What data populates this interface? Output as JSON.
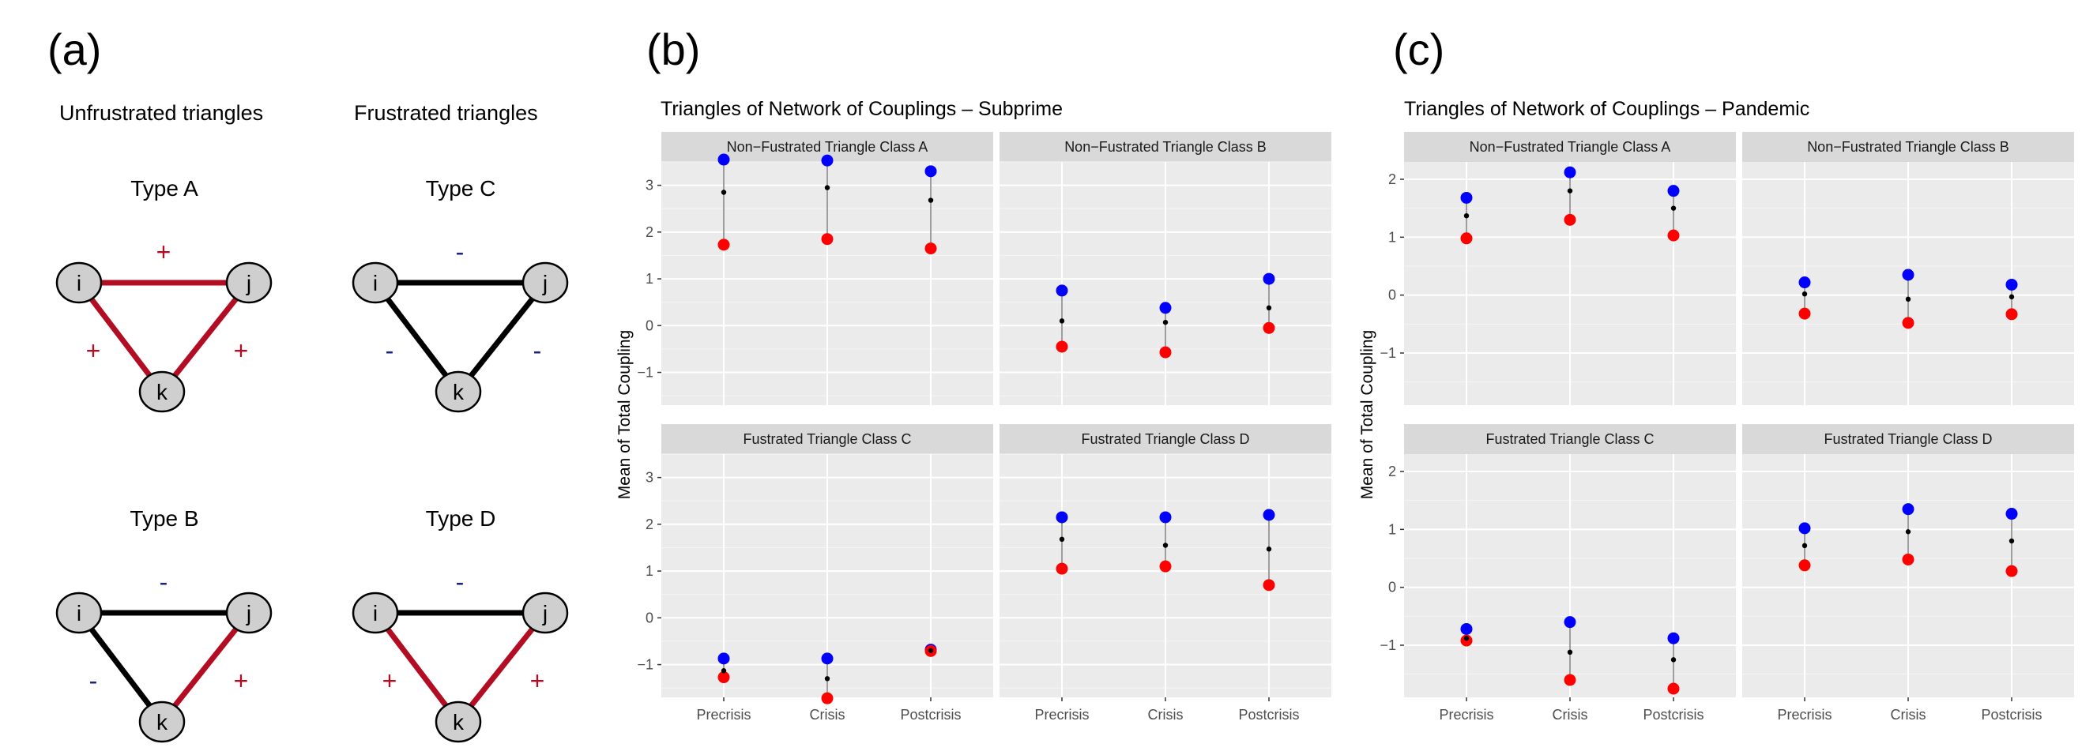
{
  "colors": {
    "positive_edge": "#b30d24",
    "negative_edge": "#000000",
    "positive_sign": "#b30d24",
    "negative_sign": "#1a237e",
    "node_fill": "#cfcfcf",
    "upper_point": "#0000ff",
    "lower_point": "#ff0000",
    "mean_point": "#000000",
    "panel_bg": "#ebebeb",
    "strip_bg": "#d9d9d9"
  },
  "panel_a": {
    "label": "(a)",
    "unfrustrated_heading": "Unfrustrated triangles",
    "frustrated_heading": "Frustrated triangles",
    "triangles": [
      {
        "type_label": "Type A",
        "nodes": [
          "i",
          "j",
          "k"
        ],
        "edges": {
          "ij": "+",
          "ik": "+",
          "jk": "+"
        }
      },
      {
        "type_label": "Type C",
        "nodes": [
          "i",
          "j",
          "k"
        ],
        "edges": {
          "ij": "-",
          "ik": "-",
          "jk": "-"
        }
      },
      {
        "type_label": "Type B",
        "nodes": [
          "i",
          "j",
          "k"
        ],
        "edges": {
          "ij": "-",
          "ik": "-",
          "jk": "+"
        }
      },
      {
        "type_label": "Type D",
        "nodes": [
          "i",
          "j",
          "k"
        ],
        "edges": {
          "ij": "-",
          "ik": "+",
          "jk": "+"
        }
      }
    ]
  },
  "panel_b_label": "(b)",
  "panel_c_label": "(c)",
  "chart_data": [
    {
      "type": "scatter",
      "title": "Triangles of Network of Couplings – Subprime",
      "xlabel": "",
      "ylabel": "Mean of Total Coupling",
      "categories": [
        "Precrisis",
        "Crisis",
        "Postcrisis"
      ],
      "ylim": [
        -1.7,
        3.5
      ],
      "yticks": [
        -1,
        0,
        1,
        2,
        3
      ],
      "facets": [
        {
          "strip": "Non−Fustrated Triangle Class A",
          "upper": [
            3.55,
            3.53,
            3.3
          ],
          "mean": [
            2.85,
            2.95,
            2.68
          ],
          "lower": [
            1.73,
            1.85,
            1.65
          ]
        },
        {
          "strip": "Non−Fustrated Triangle Class B",
          "upper": [
            0.75,
            0.38,
            1.0
          ],
          "mean": [
            0.1,
            0.07,
            0.38
          ],
          "lower": [
            -0.45,
            -0.57,
            -0.05
          ]
        },
        {
          "strip": "Fustrated Triangle Class C",
          "upper": [
            -0.87,
            -0.87,
            -0.68
          ],
          "mean": [
            -1.13,
            -1.3,
            -0.7
          ],
          "lower": [
            -1.27,
            -1.72,
            -0.71
          ]
        },
        {
          "strip": "Fustrated Triangle Class D",
          "upper": [
            2.15,
            2.15,
            2.2
          ],
          "mean": [
            1.68,
            1.55,
            1.47
          ],
          "lower": [
            1.05,
            1.1,
            0.7
          ]
        }
      ]
    },
    {
      "type": "scatter",
      "title": "Triangles of Network of Couplings – Pandemic",
      "xlabel": "",
      "ylabel": "Mean of Total Coupling",
      "categories": [
        "Precrisis",
        "Crisis",
        "Postcrisis"
      ],
      "ylim": [
        -1.9,
        2.3
      ],
      "yticks": [
        -1,
        0,
        1,
        2
      ],
      "facets": [
        {
          "strip": "Non−Fustrated Triangle Class A",
          "upper": [
            1.68,
            2.12,
            1.8
          ],
          "mean": [
            1.37,
            1.8,
            1.5
          ],
          "lower": [
            0.98,
            1.3,
            1.03
          ]
        },
        {
          "strip": "Non−Fustrated Triangle Class B",
          "upper": [
            0.22,
            0.35,
            0.18
          ],
          "mean": [
            0.02,
            -0.07,
            -0.03
          ],
          "lower": [
            -0.32,
            -0.48,
            -0.33
          ]
        },
        {
          "strip": "Fustrated Triangle Class C",
          "upper": [
            -0.72,
            -0.6,
            -0.88
          ],
          "mean": [
            -0.88,
            -1.12,
            -1.25
          ],
          "lower": [
            -0.92,
            -1.6,
            -1.75
          ]
        },
        {
          "strip": "Fustrated Triangle Class D",
          "upper": [
            1.02,
            1.35,
            1.27
          ],
          "mean": [
            0.72,
            0.96,
            0.8
          ],
          "lower": [
            0.38,
            0.48,
            0.28
          ]
        }
      ]
    }
  ]
}
